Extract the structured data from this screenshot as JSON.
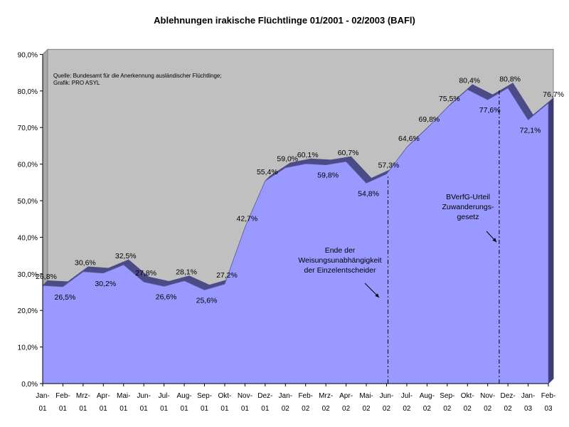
{
  "chart_data": {
    "type": "area",
    "title": "Ablehnungen irakische Flüchtlinge 01/2001 - 02/2003 (BAFl)",
    "xlabel": "",
    "ylabel": "",
    "ylim": [
      0,
      90
    ],
    "y_ticks": [
      "0,0%",
      "10,0%",
      "20,0%",
      "30,0%",
      "40,0%",
      "50,0%",
      "60,0%",
      "70,0%",
      "80,0%",
      "90,0%"
    ],
    "categories": [
      [
        "Jan-",
        "01"
      ],
      [
        "Feb-",
        "01"
      ],
      [
        "Mrz-",
        "01"
      ],
      [
        "Apr-",
        "01"
      ],
      [
        "Mai-",
        "01"
      ],
      [
        "Jun-",
        "01"
      ],
      [
        "Jul-",
        "01"
      ],
      [
        "Aug-",
        "01"
      ],
      [
        "Sep-",
        "01"
      ],
      [
        "Okt-",
        "01"
      ],
      [
        "Nov-",
        "01"
      ],
      [
        "Dez-",
        "01"
      ],
      [
        "Jan-",
        "02"
      ],
      [
        "Feb-",
        "02"
      ],
      [
        "Mrz-",
        "02"
      ],
      [
        "Apr-",
        "02"
      ],
      [
        "Mai-",
        "02"
      ],
      [
        "Jun-",
        "02"
      ],
      [
        "Jul-",
        "02"
      ],
      [
        "Aug-",
        "02"
      ],
      [
        "Sep-",
        "02"
      ],
      [
        "Okt-",
        "02"
      ],
      [
        "Nov-",
        "02"
      ],
      [
        "Dez-",
        "02"
      ],
      [
        "Jan-",
        "03"
      ],
      [
        "Feb-",
        "03"
      ]
    ],
    "values": [
      26.8,
      26.5,
      30.6,
      30.2,
      32.5,
      27.8,
      26.6,
      28.1,
      25.6,
      27.2,
      42.7,
      55.4,
      59.0,
      60.1,
      59.8,
      60.7,
      54.8,
      57.3,
      64.6,
      69.8,
      75.5,
      80.4,
      77.6,
      80.8,
      72.1,
      76.7
    ],
    "value_labels": [
      "26,8%",
      "26,5%",
      "30,6%",
      "30,2%",
      "32,5%",
      "27,8%",
      "26,6%",
      "28,1%",
      "25,6%",
      "27,2%",
      "42,7%",
      "55,4%",
      "59,0%",
      "60,1%",
      "59,8%",
      "60,7%",
      "54,8%",
      "57,3%",
      "64,6%",
      "69,8%",
      "75,5%",
      "80,4%",
      "77,6%",
      "80,8%",
      "72,1%",
      "76,7%"
    ],
    "grid": false,
    "legend": "none",
    "colors": {
      "area_fill": "#9999ff",
      "area_edge": "#4b4b88",
      "plot_background": "#c0c0c0",
      "axis": "#000000"
    },
    "source_lines": [
      "Quelle: Bundesamt für die Anerkennung ausländischer Flüchtlinge;",
      "Grafik: PRO ASYL"
    ],
    "annotations": [
      {
        "at_category": 17,
        "lines": [
          "Ende der",
          "Weisungsunabhängigkeit",
          "der Einzelentscheider"
        ]
      },
      {
        "at_category": 22.5,
        "lines": [
          "BVerfG-Urteil",
          "Zuwanderungs-",
          "gesetz"
        ]
      }
    ]
  }
}
